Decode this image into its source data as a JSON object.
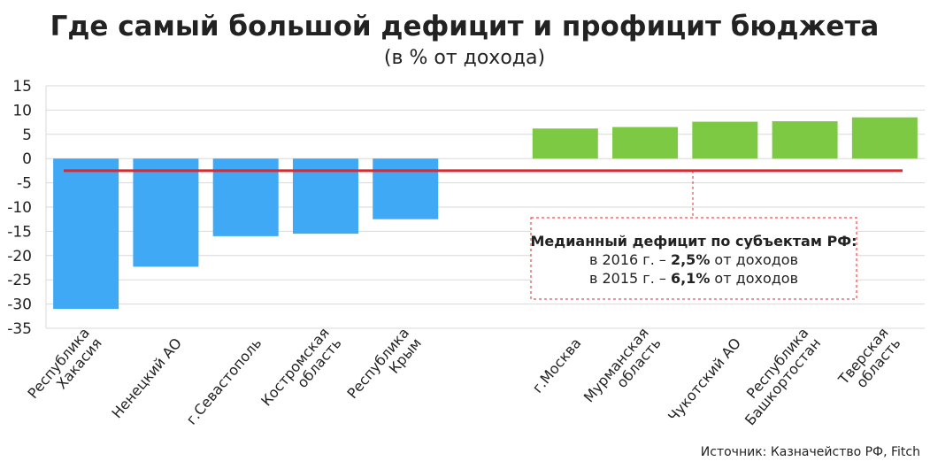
{
  "chart_data": {
    "type": "bar",
    "title": "Где самый большой дефицит и профицит бюджета",
    "subtitle": "(в % от дохода)",
    "categories": [
      "Республика\nХакасия",
      "Ненецкий АО",
      "г.Севастополь",
      "Костромская\nобласть",
      "Республика\nКрым",
      null,
      "г.Москва",
      "Мурманская\nобласть",
      "Чукотский АО",
      "Республика\nБашкортостан",
      "Тверская\nобласть"
    ],
    "values": [
      -31,
      -22.3,
      -16,
      -15.5,
      -12.5,
      null,
      6.2,
      6.5,
      7.6,
      7.7,
      8.5
    ],
    "colors": [
      "#3fa9f5",
      "#3fa9f5",
      "#3fa9f5",
      "#3fa9f5",
      "#3fa9f5",
      null,
      "#7dc944",
      "#7dc944",
      "#7dc944",
      "#7dc944",
      "#7dc944"
    ],
    "ylim": [
      -35,
      15
    ],
    "yticks": [
      -35,
      -30,
      -25,
      -20,
      -15,
      -10,
      -5,
      0,
      5,
      10,
      15
    ],
    "grid": true,
    "reference_line": {
      "value": -2.5,
      "color": "#e8232a"
    },
    "annotation": [
      [
        {
          "text": "Медианный дефицит по субъектам РФ:",
          "bold": true
        }
      ],
      [
        {
          "text": "в 2016 г. – ",
          "bold": false
        },
        {
          "text": "2,5%",
          "bold": true
        },
        {
          "text": " от доходов",
          "bold": false
        }
      ],
      [
        {
          "text": "в 2015 г. – ",
          "bold": false
        },
        {
          "text": "6,1%",
          "bold": true
        },
        {
          "text": " от доходов",
          "bold": false
        }
      ]
    ],
    "source": "Источник: Казначейство РФ, Fitch"
  }
}
